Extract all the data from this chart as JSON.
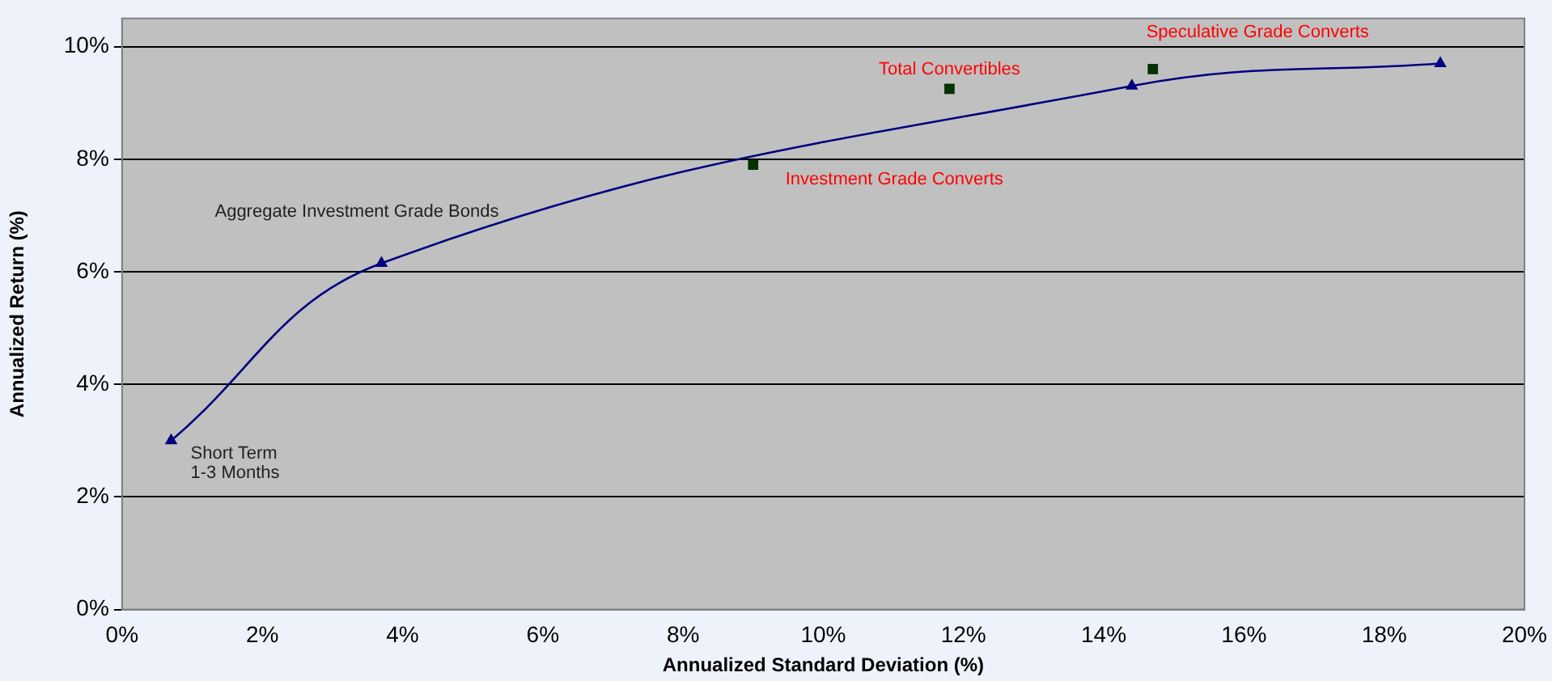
{
  "chart_data": {
    "type": "scatter",
    "xlabel": "Annualized Standard Deviation (%)",
    "ylabel": "Annualized Return (%)",
    "xlim": [
      0,
      20
    ],
    "xticks": [
      {
        "value": 0,
        "label": "0%"
      },
      {
        "value": 2,
        "label": "2%"
      },
      {
        "value": 4,
        "label": "4%"
      },
      {
        "value": 6,
        "label": "6%"
      },
      {
        "value": 8,
        "label": "8%"
      },
      {
        "value": 10,
        "label": "10%"
      },
      {
        "value": 12,
        "label": "12%"
      },
      {
        "value": 14,
        "label": "14%"
      },
      {
        "value": 16,
        "label": "16%"
      },
      {
        "value": 18,
        "label": "18%"
      },
      {
        "value": 20,
        "label": "20%"
      }
    ],
    "ylim": [
      0,
      10.5
    ],
    "yticks": [
      {
        "value": 0,
        "label": "0%"
      },
      {
        "value": 2,
        "label": "2%"
      },
      {
        "value": 4,
        "label": "4%"
      },
      {
        "value": 6,
        "label": "6%"
      },
      {
        "value": 8,
        "label": "8%"
      },
      {
        "value": 10,
        "label": "10%"
      }
    ],
    "grid": "y",
    "legend": false,
    "series": [
      {
        "type": "line",
        "color": "#000080",
        "marker": "triangle",
        "x": [
          0.7,
          3.7,
          14.4,
          18.8
        ],
        "values": [
          3.0,
          6.15,
          9.3,
          9.7
        ]
      },
      {
        "type": "scatter",
        "color": "#003300",
        "marker": "square",
        "x": [
          9.0,
          11.8,
          14.7
        ],
        "values": [
          7.9,
          9.25,
          9.6
        ]
      }
    ],
    "annotations": [
      {
        "text": "Short Term\n1-3 Months",
        "x": 0.7,
        "y": 3.0
      },
      {
        "text": "Aggregate Investment Grade Bonds",
        "x": 3.7,
        "y": 6.15
      },
      {
        "text": "Investment Grade Converts",
        "x": 9.0,
        "y": 7.9
      },
      {
        "text": "Total Convertibles",
        "x": 11.8,
        "y": 9.25
      },
      {
        "text": "Speculative Grade Converts",
        "x": 14.7,
        "y": 9.6
      }
    ]
  }
}
